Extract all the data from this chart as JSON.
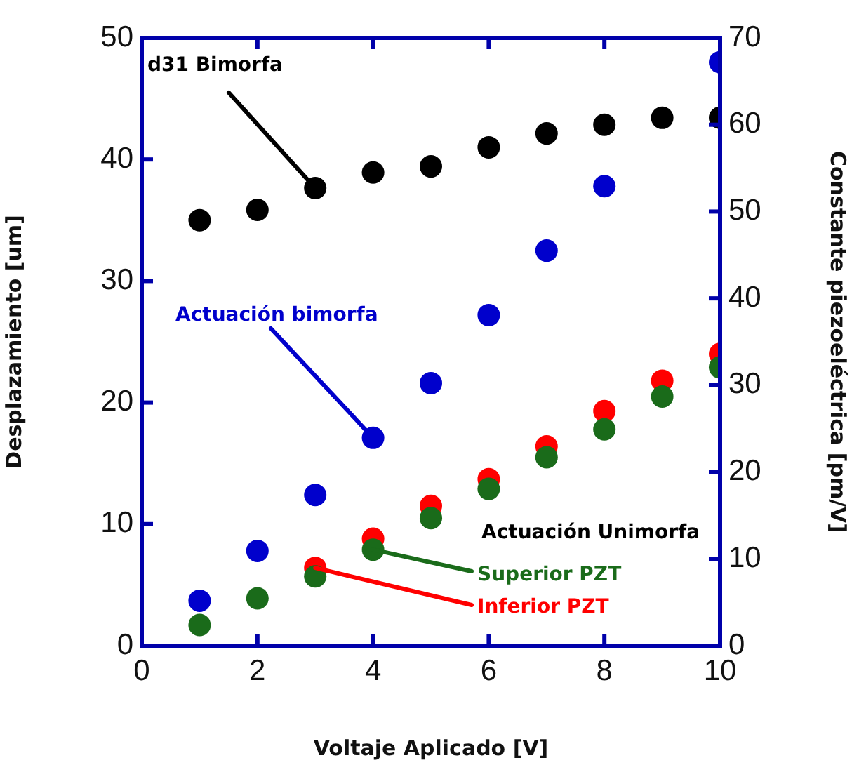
{
  "chart_data": {
    "type": "scatter",
    "xlabel": "Voltaje Aplicado [V]",
    "ylabel": "Desplazamiento [um]",
    "y2label": "Constante piezoeléctrica [pm/V]",
    "x": [
      1,
      2,
      3,
      4,
      5,
      6,
      7,
      8,
      9,
      10
    ],
    "xlim": [
      0,
      10
    ],
    "xticks": [
      0,
      2,
      4,
      6,
      8,
      10
    ],
    "ylim": [
      0,
      50
    ],
    "yticks": [
      0,
      10,
      20,
      30,
      40,
      50
    ],
    "y2lim": [
      0,
      70
    ],
    "y2ticks": [
      0,
      10,
      20,
      30,
      40,
      50,
      60,
      70
    ],
    "grid": false,
    "legend": false,
    "marker": "circle",
    "series": [
      {
        "name": "d31 Bimorfa",
        "color": "#000000",
        "axis": "y2",
        "values": [
          49,
          50.2,
          52.7,
          54.5,
          55.2,
          57.4,
          59,
          60,
          60.8,
          60.8
        ]
      },
      {
        "name": "Actuación bimorfa",
        "color": "#0000cc",
        "values": [
          3.7,
          7.8,
          12.4,
          17.1,
          21.6,
          27.2,
          32.5,
          37.8,
          null,
          48
        ]
      },
      {
        "name": "Superior PZT",
        "color": "#1a6b1a",
        "values": [
          1.7,
          3.9,
          5.7,
          7.9,
          10.5,
          12.9,
          15.5,
          17.8,
          20.5,
          22.9
        ]
      },
      {
        "name": "Inferior PZT",
        "color": "#ff0000",
        "values": [
          null,
          null,
          6.4,
          8.8,
          11.5,
          13.7,
          16.4,
          19.3,
          21.8,
          24
        ]
      }
    ],
    "annotations": [
      "Actuación Unimorfa"
    ]
  }
}
